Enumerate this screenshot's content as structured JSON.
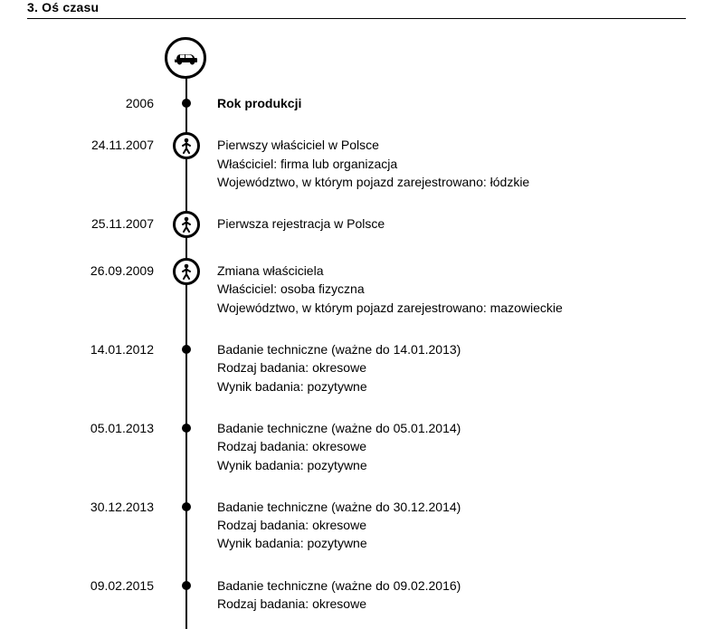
{
  "section_title": "3. Oś czasu",
  "events": [
    {
      "date": "2006",
      "marker": "dot",
      "bold": true,
      "lines": [
        "Rok produkcji"
      ]
    },
    {
      "date": "24.11.2007",
      "marker": "person",
      "bold": false,
      "lines": [
        "Pierwszy właściciel w Polsce",
        "Właściciel: firma lub organizacja",
        "Województwo, w którym pojazd zarejestrowano: łódzkie"
      ]
    },
    {
      "date": "25.11.2007",
      "marker": "person",
      "bold": false,
      "lines": [
        "Pierwsza rejestracja w Polsce"
      ]
    },
    {
      "date": "26.09.2009",
      "marker": "person",
      "bold": false,
      "lines": [
        "Zmiana właściciela",
        "Właściciel: osoba fizyczna",
        "Województwo, w którym pojazd zarejestrowano: mazowieckie"
      ]
    },
    {
      "date": "14.01.2012",
      "marker": "dot",
      "bold": false,
      "lines": [
        "Badanie techniczne (ważne do 14.01.2013)",
        "Rodzaj badania: okresowe",
        "Wynik badania: pozytywne"
      ]
    },
    {
      "date": "05.01.2013",
      "marker": "dot",
      "bold": false,
      "lines": [
        "Badanie techniczne (ważne do 05.01.2014)",
        "Rodzaj badania: okresowe",
        "Wynik badania: pozytywne"
      ]
    },
    {
      "date": "30.12.2013",
      "marker": "dot",
      "bold": false,
      "lines": [
        "Badanie techniczne (ważne do 30.12.2014)",
        "Rodzaj badania: okresowe",
        "Wynik badania: pozytywne"
      ]
    },
    {
      "date": "09.02.2015",
      "marker": "dot",
      "bold": false,
      "lines": [
        "Badanie techniczne (ważne do 09.02.2016)",
        "Rodzaj badania: okresowe"
      ]
    }
  ]
}
